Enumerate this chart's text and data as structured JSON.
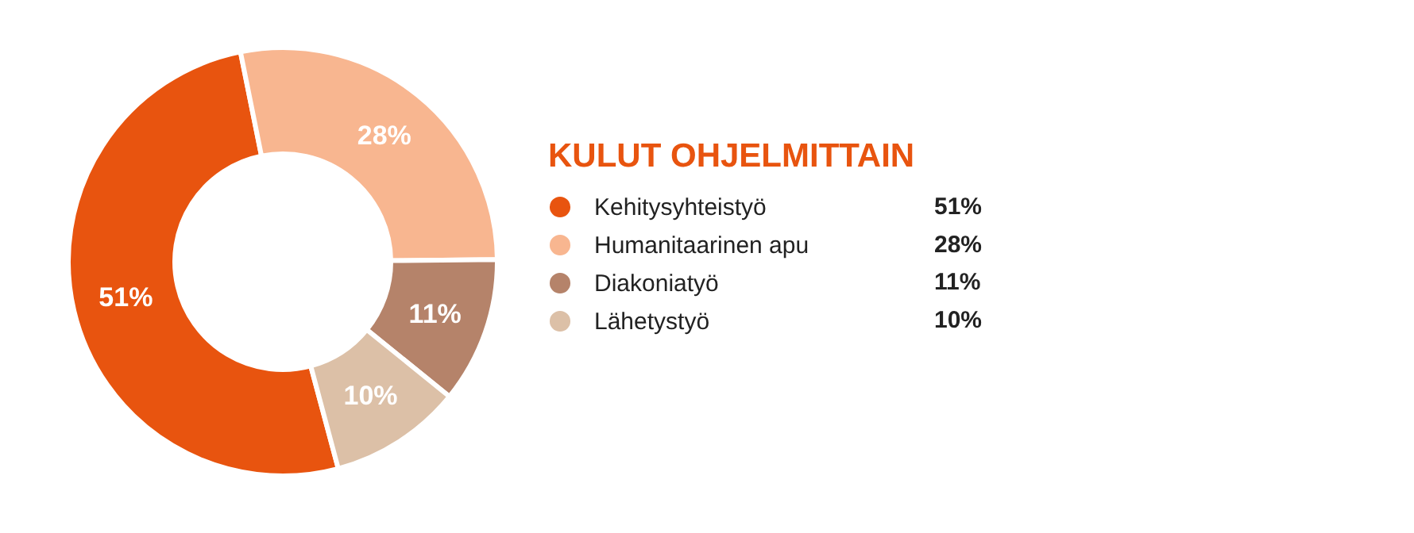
{
  "chart_data": {
    "type": "donut",
    "title": "KULUT OHJELMITTAIN",
    "categories": [
      "Kehitysyhteistyö",
      "Humanitaarinen apu",
      "Diakoniatyö",
      "Lähetystyö"
    ],
    "values": [
      51,
      28,
      11,
      10
    ],
    "colors": [
      "#e8540f",
      "#f8b690",
      "#b5836a",
      "#dcc0a7"
    ],
    "value_labels": [
      "51%",
      "28%",
      "11%",
      "10%"
    ],
    "legend": "right"
  }
}
